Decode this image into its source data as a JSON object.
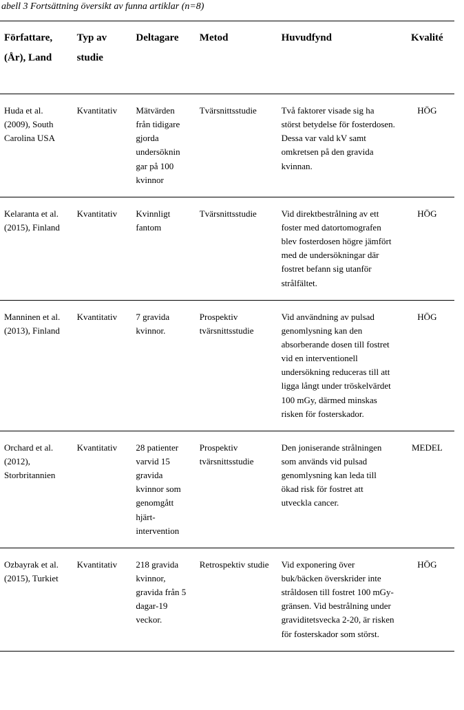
{
  "caption": "abell 3 Fortsättning översikt av funna artiklar (n=8)",
  "headers": {
    "author": "Författare, (År), Land",
    "type": "Typ av studie",
    "participants": "Deltagare",
    "method": "Metod",
    "findings": "Huvudfynd",
    "quality": "Kvalité"
  },
  "rows": [
    {
      "author": "Huda et al. (2009), South Carolina USA",
      "type": "Kvantitativ",
      "participants": "Mätvärden från tidigare gjorda undersöknin gar på 100 kvinnor",
      "method": "Tvärsnittsstudie",
      "findings": "Två faktorer visade sig ha störst betydelse för fosterdosen. Dessa var vald kV samt omkretsen på den gravida kvinnan.",
      "quality": "HÖG"
    },
    {
      "author": "Kelaranta et al. (2015), Finland",
      "type": "Kvantitativ",
      "participants": "Kvinnligt fantom",
      "method": "Tvärsnittsstudie",
      "findings": "Vid direktbestrålning av ett foster med datortomografen blev fosterdosen högre jämfört med de undersökningar där fostret befann sig utanför strålfältet.",
      "quality": "HÖG"
    },
    {
      "author": "Manninen et al. (2013), Finland",
      "type": "Kvantitativ",
      "participants": "7 gravida kvinnor.",
      "method": "Prospektiv tvärsnittsstudie",
      "findings": "Vid användning av pulsad genomlysning kan den absorberande dosen till fostret vid en interventionell undersökning reduceras till att ligga långt under tröskelvärdet 100 mGy, därmed minskas risken för fosterskador.",
      "quality": "HÖG"
    },
    {
      "author": "Orchard et al. (2012), Storbritannien",
      "type": "Kvantitativ",
      "participants": "28 patienter varvid 15 gravida kvinnor som genomgått hjärt-intervention",
      "method": "Prospektiv tvärsnittsstudie",
      "findings": "Den joniserande strålningen som används vid pulsad genomlysning kan leda till ökad risk för fostret att utveckla cancer.",
      "quality": "MEDEL"
    },
    {
      "author": "Ozbayrak et al. (2015), Turkiet",
      "type": "Kvantitativ",
      "participants": "218 gravida kvinnor, gravida från 5 dagar-19 veckor.",
      "method": "Retrospektiv studie",
      "findings": "Vid exponering över buk/bäcken överskrider inte stråldosen till fostret 100 mGy-gränsen. Vid bestrålning under graviditetsvecka 2-20, är risken för fosterskador som störst.",
      "quality": "HÖG"
    }
  ]
}
